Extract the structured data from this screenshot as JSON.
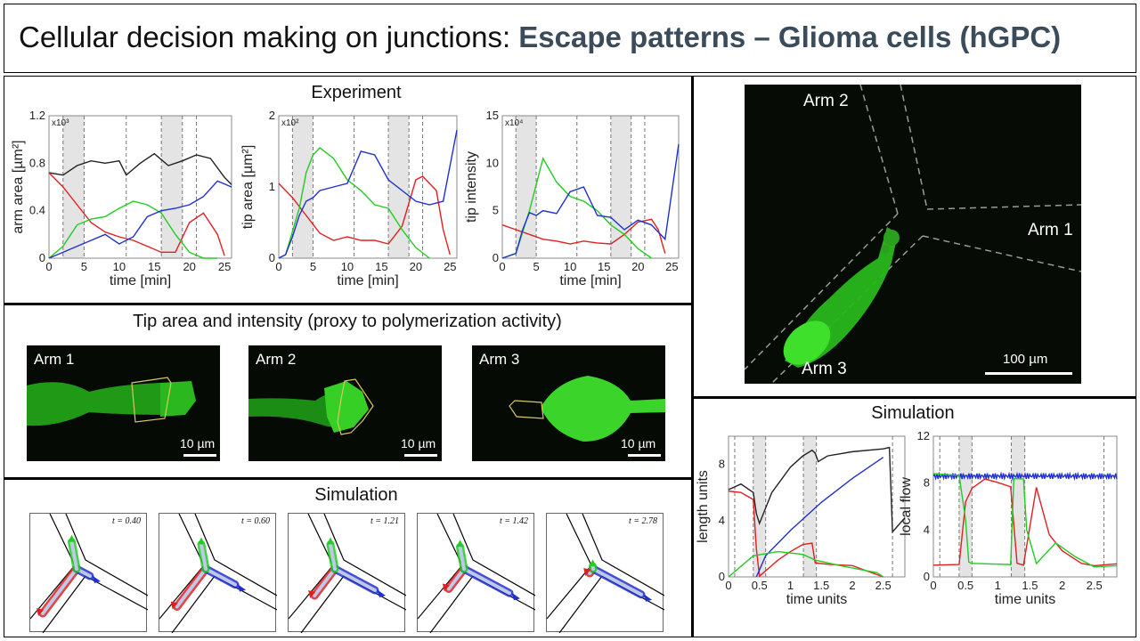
{
  "title": {
    "main": "Cellular decision making on junctions: ",
    "accent": "Escape patterns – Glioma cells (hGPC)"
  },
  "experiment": {
    "heading": "Experiment",
    "charts": [
      {
        "ylabel": "arm area [µm²]",
        "xlabel": "time [min]",
        "multiplier": "x10³",
        "yticks": [
          "0",
          "0.4",
          "0.8",
          "1.2"
        ],
        "ytick_values": [
          0,
          0.4,
          0.8,
          1.2
        ],
        "xticks": [
          "0",
          "5",
          "10",
          "15",
          "20",
          "25"
        ]
      },
      {
        "ylabel": "tip area [µm²]",
        "xlabel": "time [min]",
        "multiplier": "x10²",
        "yticks": [
          "0",
          "1",
          "2"
        ],
        "ytick_values": [
          0,
          1,
          2
        ],
        "xticks": [
          "0",
          "5",
          "10",
          "15",
          "20",
          "25"
        ]
      },
      {
        "ylabel": "tip intensity",
        "xlabel": "time [min]",
        "multiplier": "x10⁴",
        "yticks": [
          "0",
          "5",
          "10",
          "15"
        ],
        "ytick_values": [
          0,
          5,
          10,
          15
        ],
        "xticks": [
          "0",
          "5",
          "10",
          "15",
          "20",
          "25"
        ]
      }
    ]
  },
  "tip": {
    "heading": "Tip area and intensity (proxy to polymerization activity)",
    "panels": [
      {
        "label": "Arm 1",
        "scale": "10 µm"
      },
      {
        "label": "Arm 2",
        "scale": "10 µm"
      },
      {
        "label": "Arm 3",
        "scale": "10 µm"
      }
    ]
  },
  "simulation_bottom": {
    "heading": "Simulation",
    "frames": [
      "t = 0.40",
      "t = 0.60",
      "t = 1.21",
      "t = 1.42",
      "t = 2.78"
    ]
  },
  "micrograph": {
    "arm1": "Arm 1",
    "arm2": "Arm 2",
    "arm3": "Arm 3",
    "scale": "100 µm"
  },
  "simulation_right": {
    "heading": "Simulation",
    "charts": [
      {
        "ylabel": "length units",
        "xlabel": "time units",
        "yticks": [
          "0",
          "4",
          "8"
        ],
        "ytick_values": [
          0,
          4,
          8
        ],
        "xticks": [
          "0",
          "0.5",
          "1",
          "1.5",
          "2",
          "2.5"
        ]
      },
      {
        "ylabel": "local flow",
        "xlabel": "time units",
        "yticks": [
          "0",
          "4",
          "8",
          "12"
        ],
        "ytick_values": [
          0,
          4,
          8,
          12
        ],
        "xticks": [
          "0",
          "0.5",
          "1",
          "1.5",
          "2",
          "2.5"
        ]
      }
    ]
  },
  "colors": {
    "black": "#222222",
    "red": "#e02020",
    "green": "#22cc22",
    "blue": "#2030d0",
    "shade": "#e4e4e4"
  },
  "chart_data": [
    {
      "type": "line",
      "ylabel": "arm area [µm²]",
      "xlabel": "time [min]",
      "xlim": [
        0,
        26
      ],
      "ylim": [
        0,
        1.2
      ],
      "shaded": [
        [
          2,
          5
        ],
        [
          16,
          19
        ]
      ],
      "series": [
        {
          "color": "black",
          "x": [
            0,
            2,
            4,
            6,
            8,
            10,
            11,
            13,
            15,
            17,
            19,
            21,
            23,
            25,
            26
          ],
          "y": [
            0.72,
            0.7,
            0.78,
            0.82,
            0.8,
            0.82,
            0.7,
            0.8,
            0.88,
            0.78,
            0.82,
            0.87,
            0.84,
            0.68,
            0.62
          ]
        },
        {
          "color": "red",
          "x": [
            0,
            2,
            4,
            6,
            8,
            10,
            12,
            14,
            16,
            18,
            20,
            22,
            24,
            25
          ],
          "y": [
            0.72,
            0.6,
            0.45,
            0.3,
            0.22,
            0.18,
            0.15,
            0.1,
            0.05,
            0.05,
            0.3,
            0.38,
            0.2,
            0.02
          ]
        },
        {
          "color": "green",
          "x": [
            0,
            2,
            4,
            6,
            8,
            10,
            12,
            14,
            16,
            18,
            20,
            22,
            24
          ],
          "y": [
            0,
            0.1,
            0.28,
            0.33,
            0.35,
            0.42,
            0.48,
            0.45,
            0.38,
            0.2,
            0.05,
            0.0,
            0.0
          ]
        },
        {
          "color": "blue",
          "x": [
            0,
            2,
            4,
            6,
            8,
            10,
            12,
            14,
            16,
            18,
            20,
            22,
            24,
            26
          ],
          "y": [
            0,
            0.05,
            0.1,
            0.15,
            0.2,
            0.12,
            0.18,
            0.35,
            0.4,
            0.42,
            0.45,
            0.52,
            0.65,
            0.6
          ]
        }
      ]
    },
    {
      "type": "line",
      "ylabel": "tip area [µm²]",
      "xlabel": "time [min]",
      "xlim": [
        0,
        26
      ],
      "ylim": [
        0,
        2
      ],
      "shaded": [
        [
          2,
          5
        ],
        [
          16,
          19
        ]
      ],
      "series": [
        {
          "color": "red",
          "x": [
            0,
            2,
            4,
            6,
            8,
            10,
            12,
            14,
            16,
            18,
            20,
            21,
            23,
            24,
            25
          ],
          "y": [
            1.05,
            0.85,
            0.6,
            0.35,
            0.25,
            0.3,
            0.25,
            0.25,
            0.2,
            0.45,
            1.1,
            1.15,
            0.95,
            0.4,
            0.05
          ]
        },
        {
          "color": "green",
          "x": [
            0,
            1,
            3,
            4,
            5,
            6,
            8,
            10,
            12,
            14,
            16,
            18,
            20,
            22
          ],
          "y": [
            0,
            0.05,
            0.7,
            1.2,
            1.45,
            1.55,
            1.4,
            1.1,
            0.95,
            0.75,
            0.7,
            0.4,
            0.15,
            0.0
          ]
        },
        {
          "color": "blue",
          "x": [
            0,
            1,
            2,
            3,
            4,
            5,
            6,
            8,
            10,
            12,
            14,
            16,
            18,
            20,
            22,
            24,
            26
          ],
          "y": [
            0,
            0.05,
            0.3,
            0.6,
            0.8,
            0.85,
            0.95,
            1.0,
            1.05,
            1.5,
            1.45,
            1.1,
            0.95,
            0.8,
            0.75,
            0.8,
            1.8
          ]
        }
      ]
    },
    {
      "type": "line",
      "ylabel": "tip intensity",
      "xlabel": "time [min]",
      "xlim": [
        0,
        26
      ],
      "ylim": [
        0,
        15
      ],
      "shaded": [
        [
          2,
          5
        ],
        [
          16,
          19
        ]
      ],
      "series": [
        {
          "color": "red",
          "x": [
            0,
            2,
            4,
            6,
            8,
            10,
            12,
            14,
            16,
            18,
            20,
            22,
            23,
            24
          ],
          "y": [
            3.5,
            3,
            2.5,
            2,
            1.8,
            1.5,
            1.8,
            1.6,
            1.5,
            2.5,
            3.8,
            4.1,
            3,
            0.5
          ]
        },
        {
          "color": "green",
          "x": [
            0,
            2,
            4,
            6,
            8,
            10,
            12,
            14,
            16,
            18,
            20,
            22
          ],
          "y": [
            0,
            0.5,
            5,
            10.5,
            8,
            6.5,
            6,
            5,
            3.5,
            2.5,
            1,
            0
          ]
        },
        {
          "color": "blue",
          "x": [
            0,
            2,
            3,
            4,
            5,
            6,
            8,
            10,
            12,
            14,
            16,
            18,
            20,
            22,
            24,
            26
          ],
          "y": [
            0,
            0.5,
            3,
            4.8,
            4.5,
            5,
            4.7,
            7,
            7.5,
            4.5,
            4.3,
            3,
            4,
            3.5,
            2,
            12
          ]
        }
      ]
    },
    {
      "type": "line",
      "ylabel": "length units",
      "xlabel": "time units",
      "xlim": [
        0,
        2.85
      ],
      "ylim": [
        0,
        10
      ],
      "shaded": [
        [
          0.4,
          0.6
        ],
        [
          1.21,
          1.42
        ]
      ],
      "series": [
        {
          "color": "black",
          "x": [
            0,
            0.2,
            0.4,
            0.45,
            0.5,
            0.7,
            1.0,
            1.2,
            1.35,
            1.4,
            1.45,
            1.6,
            2.0,
            2.5,
            2.6,
            2.65,
            2.85
          ],
          "y": [
            6.2,
            6.6,
            6.0,
            4.5,
            3.8,
            6.0,
            7.8,
            8.6,
            9.0,
            8.8,
            8.2,
            8.6,
            8.9,
            9.1,
            9.2,
            3.2,
            4.2
          ]
        },
        {
          "color": "red",
          "x": [
            0,
            0.2,
            0.4,
            0.45,
            0.5,
            0.8,
            1.0,
            1.2,
            1.35,
            1.4,
            1.6,
            2.0,
            2.5
          ],
          "y": [
            6.1,
            6.0,
            5.5,
            2.0,
            0.05,
            1.2,
            1.8,
            2.3,
            2.4,
            1.0,
            0.9,
            0.8,
            0.0
          ]
        },
        {
          "color": "blue",
          "x": [
            0.45,
            0.6,
            1.0,
            1.5,
            2.0,
            2.5
          ],
          "y": [
            0.0,
            1.5,
            3.3,
            5.3,
            7.0,
            8.5
          ]
        },
        {
          "color": "green",
          "x": [
            0,
            0.4,
            0.8,
            1.2,
            1.4,
            1.8,
            2.4,
            2.5
          ],
          "y": [
            0.0,
            1.5,
            1.8,
            1.6,
            1.2,
            0.8,
            0.3,
            0.0
          ]
        }
      ]
    },
    {
      "type": "line",
      "ylabel": "local flow",
      "xlabel": "time units",
      "xlim": [
        0,
        2.85
      ],
      "ylim": [
        0,
        12
      ],
      "shaded": [
        [
          0.4,
          0.6
        ],
        [
          1.21,
          1.42
        ]
      ],
      "series": [
        {
          "color": "blue",
          "x": [
            0,
            2.85
          ],
          "y": [
            8.6,
            8.6
          ]
        },
        {
          "color": "red",
          "x": [
            0,
            0.4,
            0.5,
            0.6,
            0.8,
            1.0,
            1.2,
            1.3,
            1.4,
            1.6,
            1.8,
            2.0,
            2.3,
            2.5,
            2.85
          ],
          "y": [
            1.0,
            1.2,
            6.5,
            7.5,
            8.2,
            8.0,
            7.8,
            1.3,
            1.0,
            7.5,
            3.5,
            2.3,
            1.3,
            1.0,
            1.0
          ]
        },
        {
          "color": "green",
          "x": [
            0,
            0.4,
            0.5,
            0.55,
            0.6,
            1.2,
            1.25,
            1.4,
            1.45,
            1.6,
            1.9,
            2.2,
            2.5,
            2.85
          ],
          "y": [
            8.8,
            8.8,
            5.0,
            1.2,
            1.0,
            1.0,
            8.5,
            8.5,
            4.0,
            1.0,
            2.8,
            1.8,
            1.0,
            1.0
          ]
        }
      ]
    }
  ]
}
